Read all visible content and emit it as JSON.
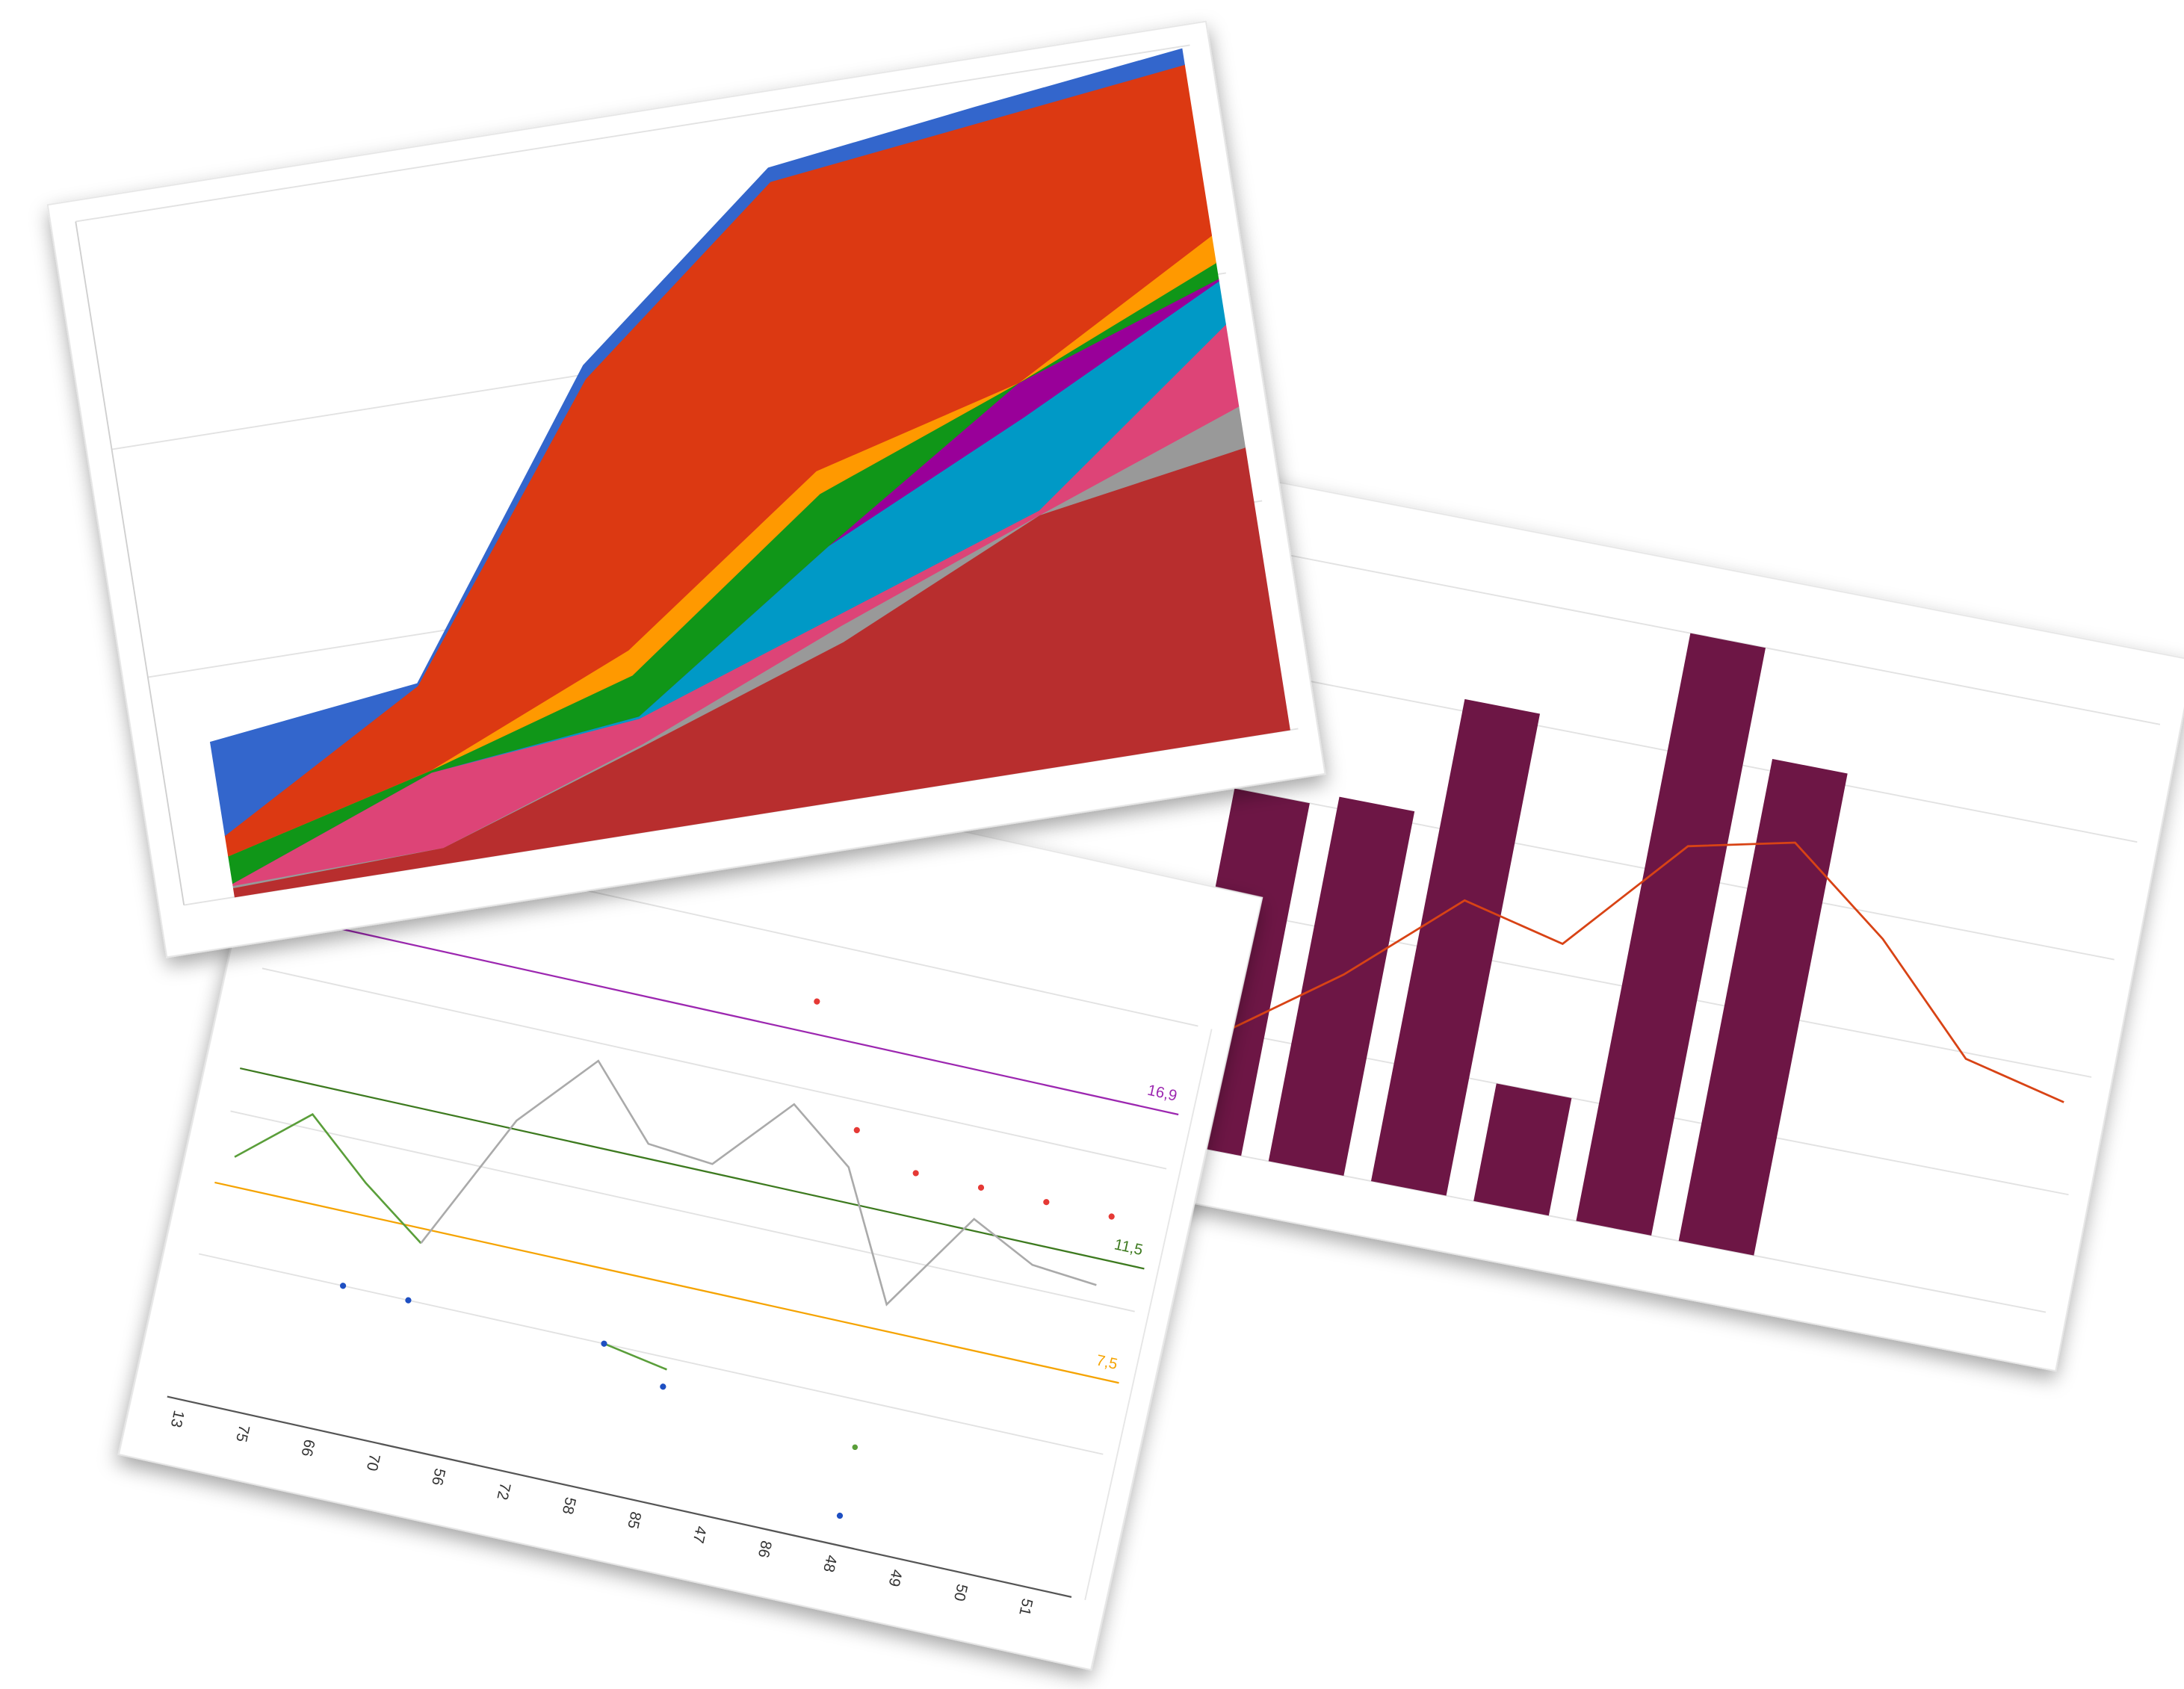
{
  "chart_data": [
    {
      "type": "bar",
      "categories": [
        null,
        null,
        null,
        null,
        null,
        null,
        null,
        null,
        null
      ],
      "series": [
        {
          "type": "bar",
          "color": "#6d1645",
          "values": [
            60,
            62,
            82,
            20,
            100,
            82,
            null,
            null,
            null
          ]
        },
        {
          "type": "line",
          "color": "#d84315",
          "values": [
            20,
            33,
            49,
            45,
            65,
            69,
            56,
            39,
            35
          ]
        }
      ],
      "ylim": [
        0,
        100
      ],
      "yticks": [
        0,
        20,
        40,
        60,
        80,
        100
      ],
      "grid": true
    },
    {
      "type": "line",
      "categories": [
        "13",
        "75",
        "66",
        "70",
        "56",
        "72",
        "58",
        "85",
        "47",
        "86",
        "48",
        "49",
        "50",
        "51"
      ],
      "series": [
        {
          "style": "line",
          "color": "#5a9e3a",
          "values": [
            8.5,
            10.5,
            8.6,
            7.0,
            null,
            null,
            5.0,
            4.6,
            null,
            null,
            3.4,
            null,
            null,
            null
          ]
        },
        {
          "style": "line",
          "color": "#aaaaaa",
          "values": [
            null,
            null,
            null,
            7.0,
            11.8,
            14.4,
            12.0,
            11.8,
            14.4,
            12.7,
            8.4,
            11.9,
            10.8,
            10.6
          ]
        },
        {
          "style": "markers",
          "color": "#e53935",
          "values": [
            null,
            null,
            null,
            null,
            null,
            null,
            null,
            null,
            18.0,
            14.0,
            13.0,
            13.0,
            13.0,
            13.0
          ]
        },
        {
          "style": "markers",
          "color": "#1e4fc2",
          "values": [
            null,
            null,
            5.0,
            5.0,
            null,
            null,
            5.0,
            4.0,
            null,
            null,
            1.0,
            null,
            null,
            null
          ]
        }
      ],
      "reference_lines": [
        {
          "value": 16.9,
          "label": "16,9",
          "color": "#9c27b0"
        },
        {
          "value": 11.5,
          "label": "11,5",
          "color": "#3d7a1f"
        },
        {
          "value": 7.5,
          "label": "7,5",
          "color": "#f5a300"
        }
      ],
      "ylim": [
        0,
        20
      ],
      "yticks": [
        0,
        5,
        10,
        15,
        20
      ],
      "grid": true
    },
    {
      "type": "area",
      "stacked": true,
      "categories": [
        null,
        null,
        null,
        null,
        null,
        null
      ],
      "series": [
        {
          "color": "#b82e2e",
          "values": [
            0.4,
            0.7,
            3.7,
            6.8,
            10.9,
            12.4
          ]
        },
        {
          "color": "#999999",
          "values": [
            0.1,
            0,
            0.1,
            0.7,
            0,
            1.8
          ]
        },
        {
          "color": "#dd4477",
          "values": [
            0.1,
            3.3,
            1.1,
            0.5,
            0.2,
            3.6
          ]
        },
        {
          "color": "#0099c6",
          "values": [
            0,
            0,
            0.1,
            3.0,
            4.1,
            1.9
          ]
        },
        {
          "color": "#990099",
          "values": [
            0,
            0,
            0,
            0,
            1.5,
            0.1
          ]
        },
        {
          "color": "#109618",
          "values": [
            1.2,
            0.1,
            1.8,
            2.3,
            0,
            0.7
          ]
        },
        {
          "color": "#ff9900",
          "values": [
            0,
            0,
            1.1,
            1.0,
            0,
            1.2
          ]
        },
        {
          "color": "#dc3912",
          "values": [
            0.9,
            3.7,
            11.9,
            12.7,
            11.4,
            7.5
          ]
        },
        {
          "color": "#3366cc",
          "values": [
            4.1,
            0.1,
            0.6,
            0.6,
            0.7,
            0.7
          ]
        }
      ],
      "ylim": [
        0,
        30
      ],
      "yticks": [
        0,
        10,
        20,
        30
      ],
      "grid": true
    }
  ]
}
